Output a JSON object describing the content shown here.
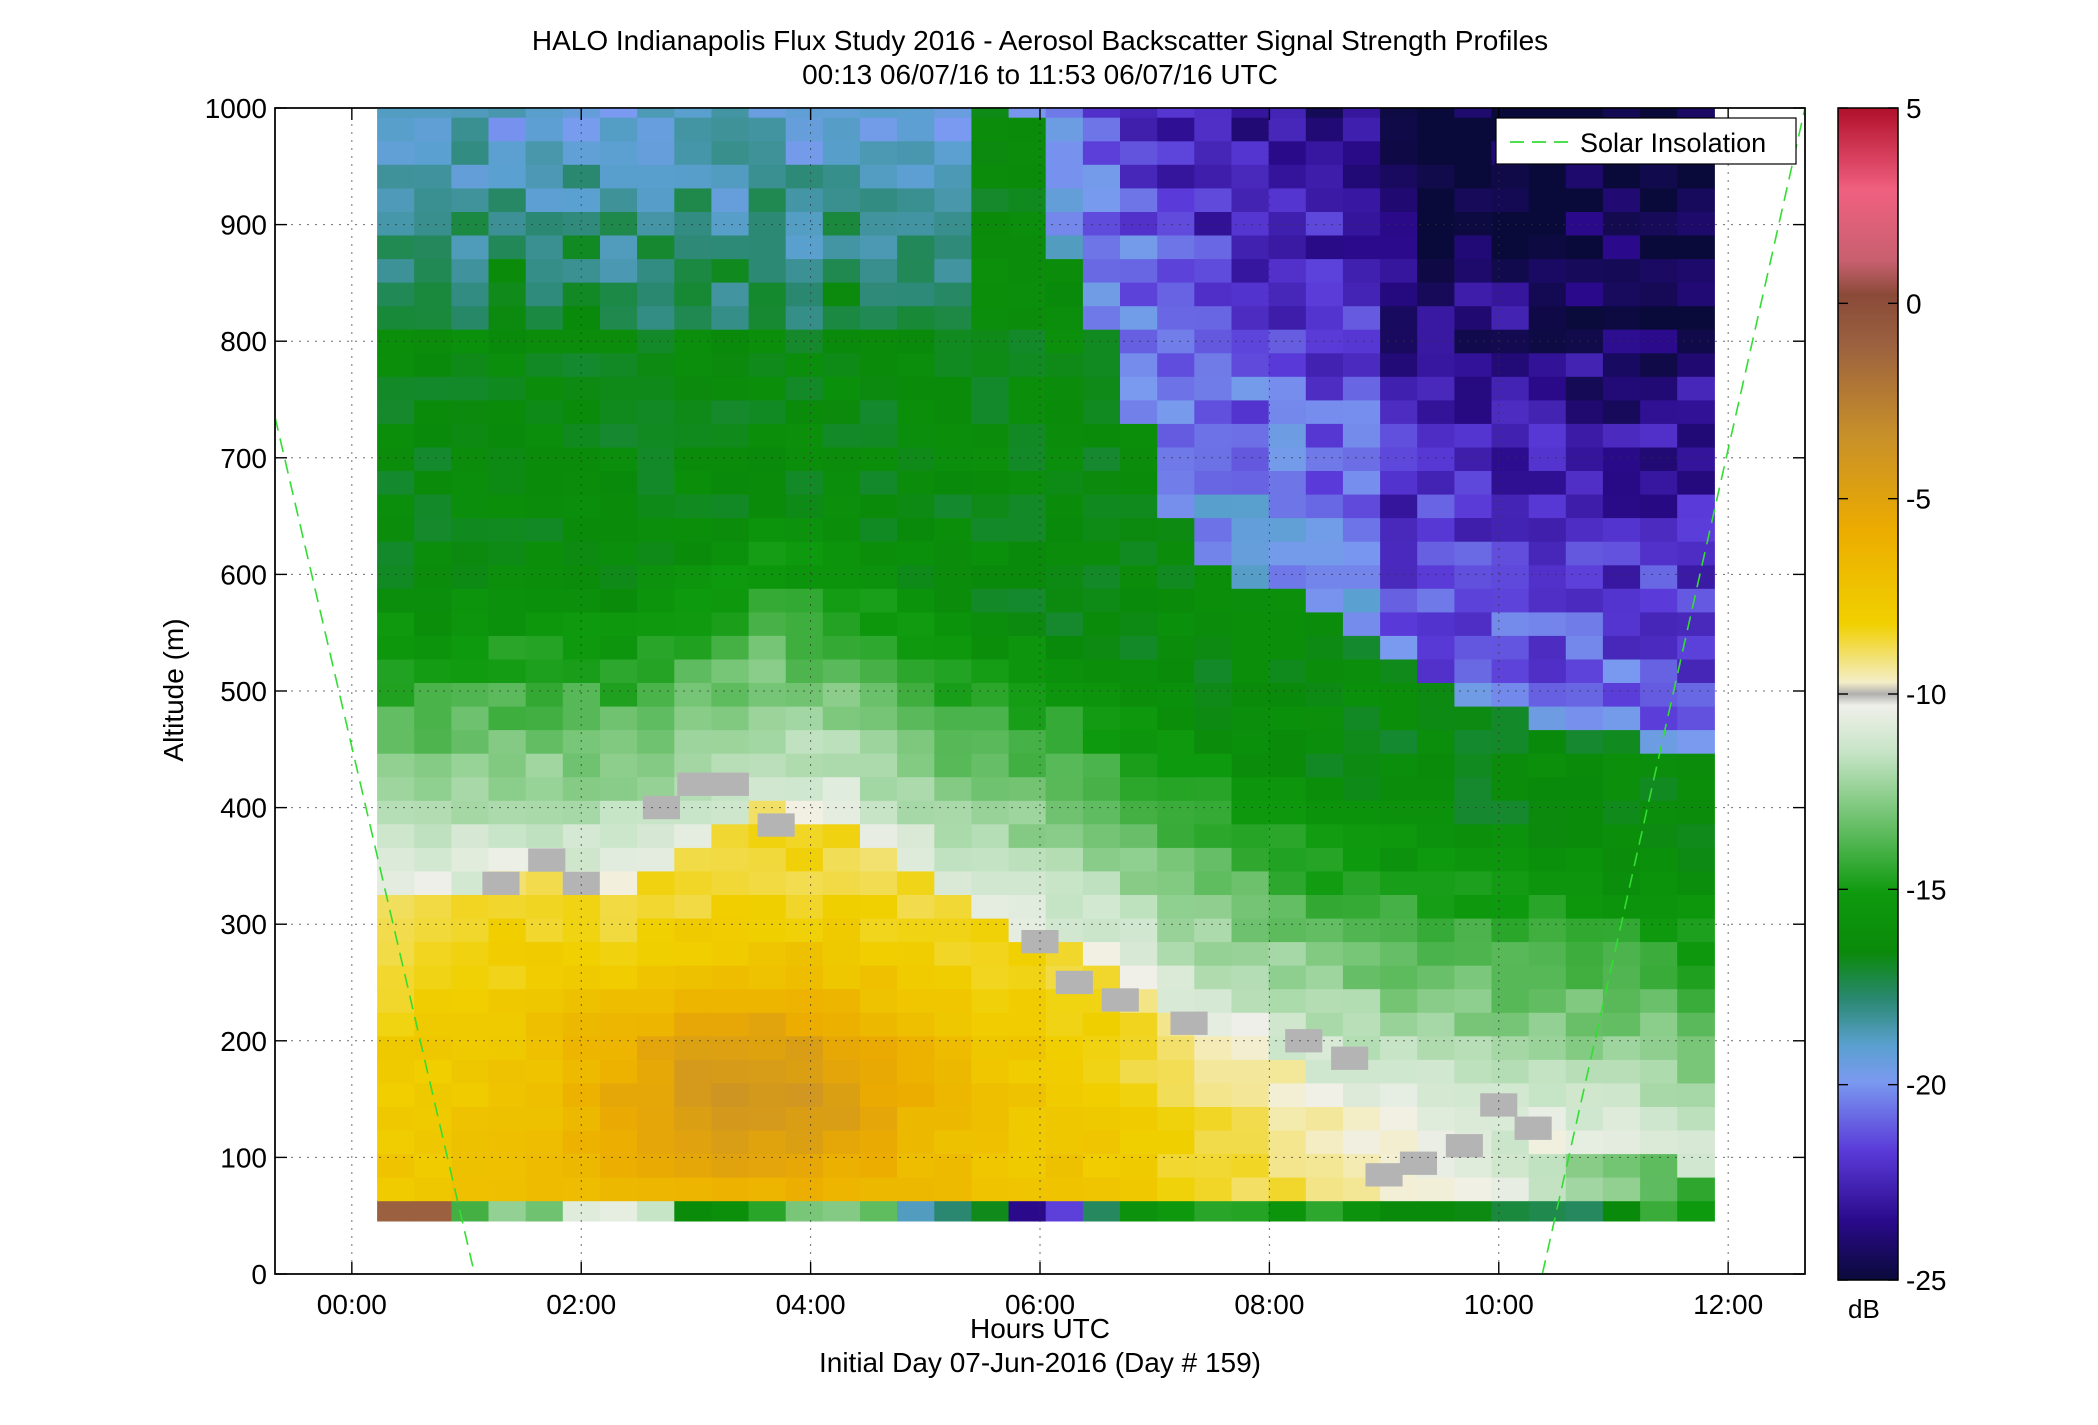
{
  "title_line1": "HALO Indianapolis Flux Study 2016 - Aerosol Backscatter Signal Strength Profiles",
  "title_line2": "00:13 06/07/16 to 11:53 06/07/16  UTC",
  "xlabel": "Hours UTC",
  "sublabel": "Initial Day 07-Jun-2016 (Day # 159)",
  "ylabel": "Altitude (m)",
  "legend_label": "Solar Insolation",
  "colorbar_unit": "dB",
  "chart_data": {
    "type": "heatmap",
    "title": "HALO Indianapolis Flux Study 2016 - Aerosol Backscatter Signal Strength Profiles",
    "subtitle": "00:13 06/07/16 to 11:53 06/07/16  UTC",
    "xlabel": "Hours UTC",
    "ylabel": "Altitude (m)",
    "x_unit": "hours UTC",
    "xlim": [
      -0.67,
      12.67
    ],
    "ylim": [
      0,
      1000
    ],
    "xticks": [
      0,
      2,
      4,
      6,
      8,
      10,
      12
    ],
    "xtick_labels": [
      "00:00",
      "02:00",
      "04:00",
      "06:00",
      "08:00",
      "10:00",
      "12:00"
    ],
    "yticks": [
      0,
      100,
      200,
      300,
      400,
      500,
      600,
      700,
      800,
      900,
      1000
    ],
    "ytick_labels": [
      "0",
      "100",
      "200",
      "300",
      "400",
      "500",
      "600",
      "700",
      "800",
      "900",
      "1000"
    ],
    "grid": true,
    "colorbar": {
      "unit": "dB",
      "range": [
        -25,
        5
      ],
      "ticks": [
        5,
        0,
        -5,
        -10,
        -15,
        -20,
        -25
      ],
      "tick_labels": [
        "5",
        "0",
        "-5",
        "-10",
        "-15",
        "-20",
        "-25"
      ]
    },
    "time_start": 0.22,
    "time_end": 11.88,
    "altitude_min": 45,
    "altitude_max": 1000,
    "columns_hours_approx": [
      "00:13-11:53, ~20-minute profiles"
    ],
    "regions": [
      {
        "description": "boundary layer yellow/orange",
        "altitude_top_m": [
          330,
          330,
          340,
          330,
          360,
          400,
          380,
          330,
          300,
          280,
          230,
          200,
          160,
          140,
          120,
          110,
          100,
          80
        ]
      },
      {
        "description": "gray cells (-10 dB)",
        "points": [
          [
            1.3,
            335
          ],
          [
            1.7,
            355
          ],
          [
            2.0,
            335
          ],
          [
            2.7,
            400
          ],
          [
            3.0,
            420
          ],
          [
            3.3,
            420
          ],
          [
            3.7,
            385
          ],
          [
            6.0,
            285
          ],
          [
            6.3,
            250
          ],
          [
            6.7,
            235
          ],
          [
            7.3,
            215
          ],
          [
            8.3,
            200
          ],
          [
            8.7,
            185
          ],
          [
            9.3,
            95
          ],
          [
            9.7,
            110
          ],
          [
            10.0,
            145
          ],
          [
            10.3,
            125
          ],
          [
            9.0,
            85
          ]
        ]
      },
      {
        "description": "upper purple/blue clear air after 07:00",
        "altitude_bottom_m": 440
      }
    ],
    "legend": {
      "entries": [
        "Solar Insolation"
      ],
      "placement": "top-right"
    },
    "solar_insolation_line": [
      {
        "x": [
          -0.67,
          1.07
        ],
        "y": [
          735,
          0
        ]
      },
      {
        "x": [
          10.38,
          12.67
        ],
        "y": [
          0,
          1000
        ]
      }
    ]
  }
}
